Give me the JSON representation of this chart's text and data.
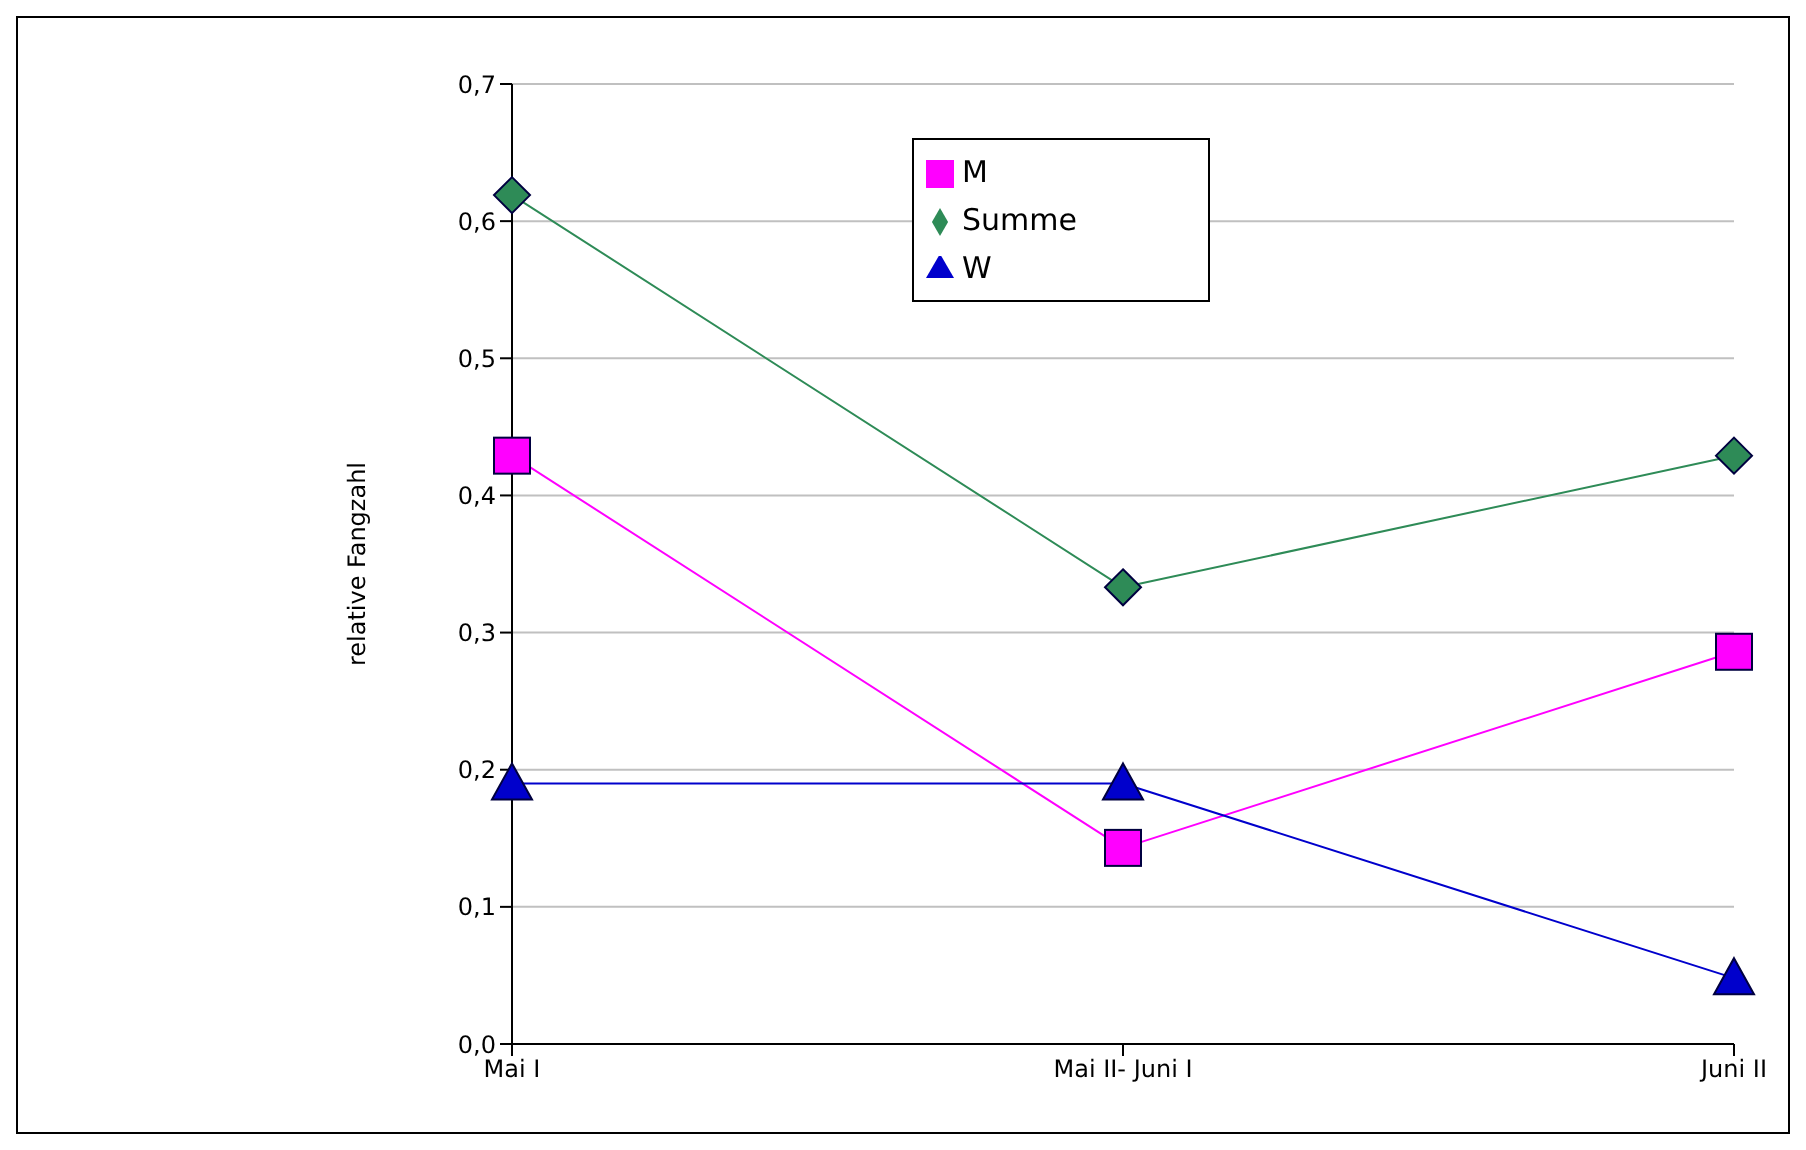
{
  "chart_data": {
    "type": "line",
    "ylabel": "relative Fangzahl",
    "categories": [
      "Mai I",
      "Mai II- Juni I",
      "Juni II"
    ],
    "series": [
      {
        "name": "Summe",
        "color": "#2e8b57",
        "marker": "diamond",
        "values": [
          0.619,
          0.333,
          0.429
        ]
      },
      {
        "name": "M",
        "color": "#ff00ff",
        "marker": "square",
        "values": [
          0.429,
          0.143,
          0.286
        ]
      },
      {
        "name": "W",
        "color": "#0000cc",
        "marker": "triangle",
        "values": [
          0.19,
          0.19,
          0.048
        ]
      }
    ],
    "ylim": [
      0,
      0.7
    ],
    "yticks": [
      {
        "value": 0,
        "label": "0,0"
      },
      {
        "value": 0.1,
        "label": "0,1"
      },
      {
        "value": 0.2,
        "label": "0,2"
      },
      {
        "value": 0.3,
        "label": "0,3"
      },
      {
        "value": 0.4,
        "label": "0,4"
      },
      {
        "value": 0.5,
        "label": "0,5"
      },
      {
        "value": 0.6,
        "label": "0,6"
      },
      {
        "value": 0.7,
        "label": "0,7"
      }
    ],
    "grid": "y",
    "legend": "top",
    "line_style": "solid"
  }
}
